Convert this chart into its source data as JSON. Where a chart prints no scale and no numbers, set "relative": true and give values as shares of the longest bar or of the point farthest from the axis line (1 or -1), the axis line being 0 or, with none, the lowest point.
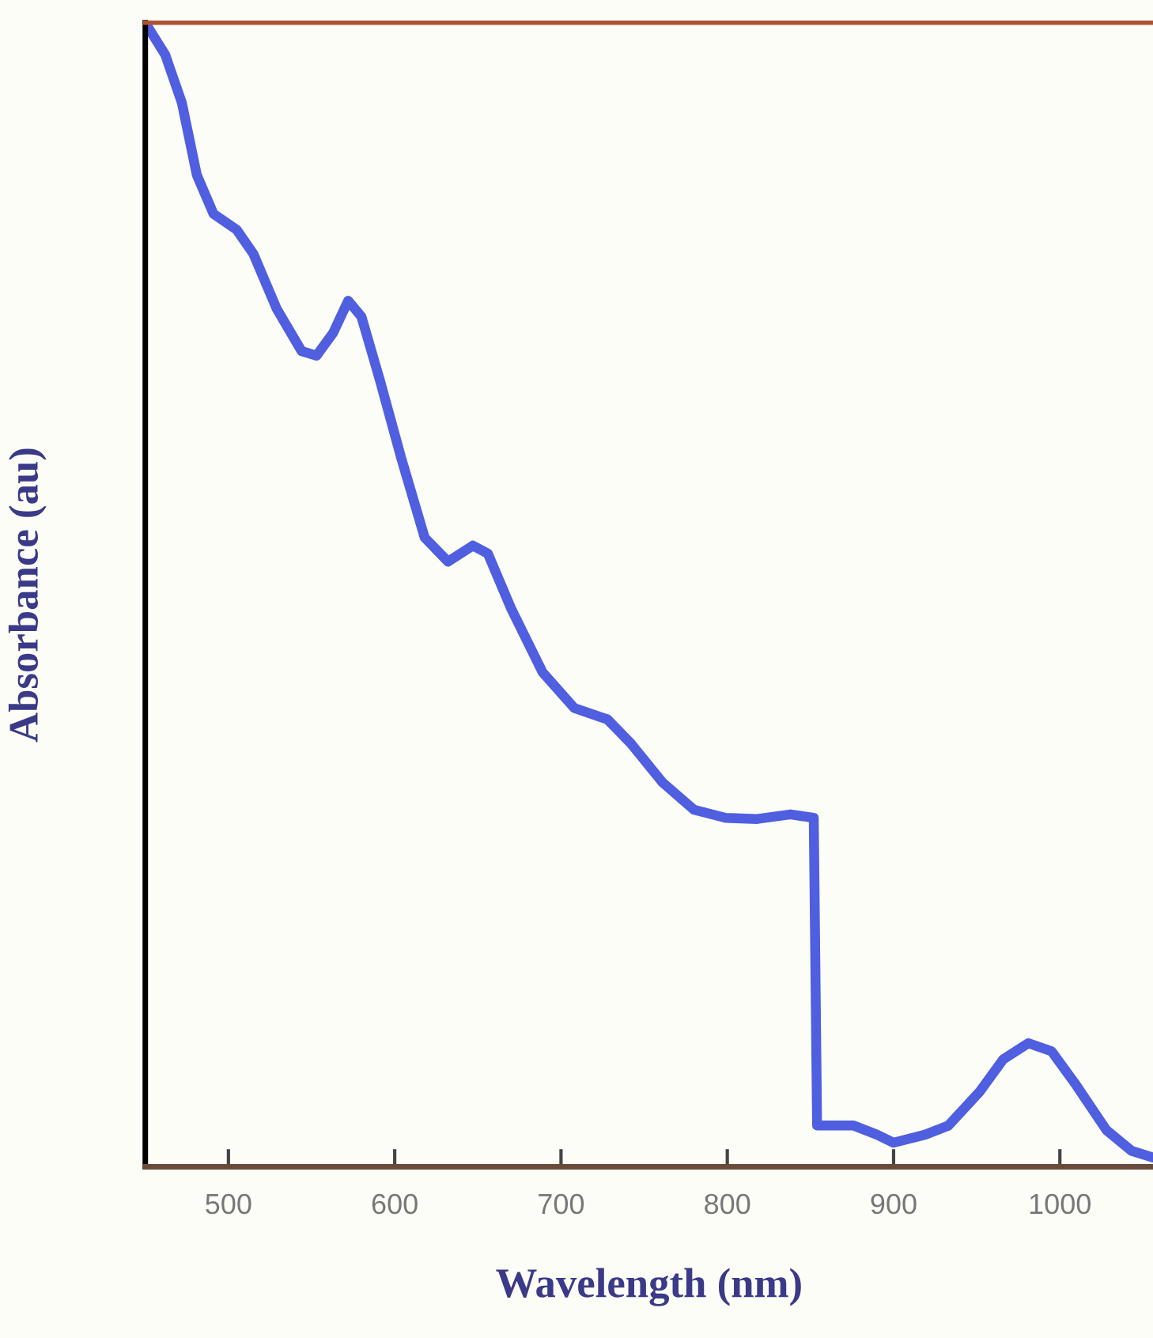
{
  "chart_data": {
    "type": "line",
    "xlabel": "Wavelength (nm)",
    "ylabel": "Absorbance (au)",
    "relative": true,
    "xlim": [
      450,
      1056
    ],
    "xticks": [
      500,
      600,
      700,
      800,
      900,
      1000
    ],
    "grid": false,
    "legend": false,
    "marker": "none",
    "line_style": "solid",
    "series": [
      {
        "color": "#4f5fe0",
        "x": [
          450,
          462,
          472,
          481,
          491,
          505,
          515,
          529,
          544,
          553,
          563,
          572,
          580,
          591,
          604,
          618,
          632,
          647,
          656,
          670,
          689,
          708,
          728,
          742,
          761,
          780,
          799,
          818,
          838,
          852,
          854,
          876,
          890,
          900,
          919,
          933,
          952,
          966,
          981,
          995,
          1009,
          1028,
          1043,
          1056
        ],
        "values": [
          1.0,
          0.972,
          0.93,
          0.867,
          0.833,
          0.819,
          0.798,
          0.75,
          0.713,
          0.709,
          0.729,
          0.757,
          0.743,
          0.688,
          0.619,
          0.55,
          0.529,
          0.543,
          0.536,
          0.488,
          0.432,
          0.401,
          0.391,
          0.37,
          0.336,
          0.312,
          0.305,
          0.304,
          0.308,
          0.305,
          0.036,
          0.036,
          0.028,
          0.021,
          0.028,
          0.036,
          0.066,
          0.094,
          0.108,
          0.101,
          0.073,
          0.032,
          0.014,
          0.008
        ]
      }
    ]
  }
}
